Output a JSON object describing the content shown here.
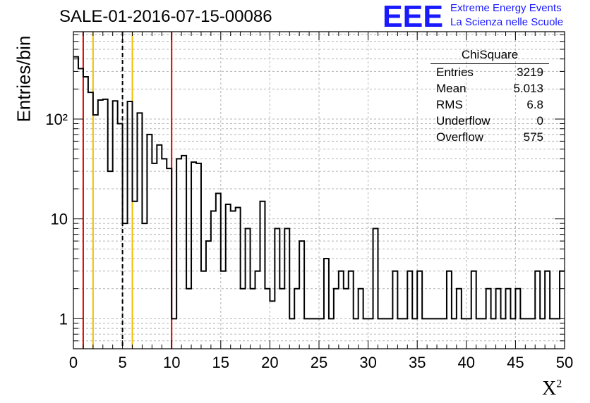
{
  "header": {
    "title": "SALE-01-2016-07-15-00086",
    "logo_text": "EEE",
    "logo_line1": "Extreme Energy Events",
    "logo_line2": "La Scienza nelle Scuole"
  },
  "stats": {
    "title": "ChiSquare",
    "rows": [
      {
        "label": "Entries",
        "value": "3219"
      },
      {
        "label": "Mean",
        "value": "5.013"
      },
      {
        "label": "RMS",
        "value": "6.8"
      },
      {
        "label": "Underflow",
        "value": "0"
      },
      {
        "label": "Overflow",
        "value": "575"
      }
    ]
  },
  "colors": {
    "red_line": "#e00000",
    "yellow_line": "#f0c000",
    "histogram": "#000000",
    "logo_blue": "#1a1aff"
  },
  "chart_data": {
    "type": "bar",
    "histogram_style": "step",
    "xlabel": "X²",
    "ylabel": "Entries/bin",
    "xlim": [
      0,
      50
    ],
    "ylim": [
      0.5,
      750
    ],
    "yscale": "log",
    "grid": true,
    "bin_width": 0.5,
    "x_ticks": [
      "0",
      "5",
      "10",
      "15",
      "20",
      "25",
      "30",
      "35",
      "40",
      "45",
      "50"
    ],
    "y_ticks": [
      "1",
      "10",
      "10²"
    ],
    "values": [
      420,
      320,
      265,
      185,
      110,
      155,
      158,
      30,
      152,
      90,
      9,
      150,
      15,
      115,
      9,
      70,
      36,
      55,
      40,
      32,
      1,
      40,
      43,
      2,
      37,
      36,
      3,
      6,
      12,
      18,
      3,
      14,
      12,
      13,
      2,
      8,
      2,
      3,
      15,
      2,
      1.5,
      8,
      2,
      8,
      1,
      2,
      6,
      1,
      1,
      1,
      1,
      4,
      1,
      2,
      3,
      2,
      3,
      1,
      2,
      1,
      1,
      8,
      1,
      1,
      1,
      3,
      1,
      1,
      3,
      1,
      3,
      1,
      1,
      1,
      1,
      1,
      3,
      1,
      2,
      1,
      1,
      3,
      1,
      1,
      2,
      1,
      2,
      1,
      2,
      1,
      2,
      1,
      1,
      1,
      3,
      1,
      3,
      1,
      1,
      3
    ],
    "vertical_lines": [
      {
        "x": 1,
        "style": "solid",
        "color": "red"
      },
      {
        "x": 2,
        "style": "solid",
        "color": "yellow"
      },
      {
        "x": 5,
        "style": "dashed",
        "color": "black"
      },
      {
        "x": 6,
        "style": "solid",
        "color": "yellow"
      },
      {
        "x": 10,
        "style": "solid",
        "color": "red"
      }
    ],
    "legend": "top-right stats box"
  }
}
